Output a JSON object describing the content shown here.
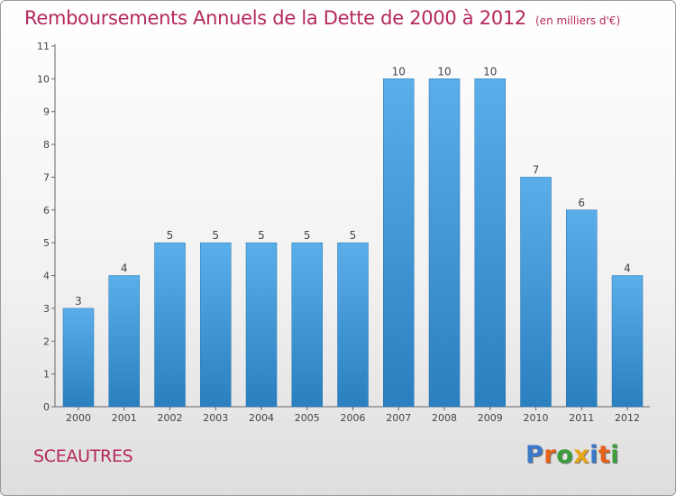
{
  "title": "Remboursements Annuels de la Dette de 2000 à 2012",
  "unit": "(en milliers d'€)",
  "commune": "SCEAUTRES",
  "logo": {
    "text": "Proxiti",
    "colors": [
      "#3a78c9",
      "#e8611a",
      "#3a9e3a",
      "#e8a71a",
      "#3a78c9",
      "#e8611a",
      "#3a9e3a"
    ]
  },
  "colors": {
    "bar_top": "#5aaeea",
    "bar_bottom": "#2a7fbf",
    "title": "#b5285e"
  },
  "chart_data": {
    "type": "bar",
    "categories": [
      "2000",
      "2001",
      "2002",
      "2003",
      "2004",
      "2005",
      "2006",
      "2007",
      "2008",
      "2009",
      "2010",
      "2011",
      "2012"
    ],
    "values": [
      3,
      4,
      5,
      5,
      5,
      5,
      5,
      10,
      10,
      10,
      7,
      6,
      4
    ],
    "yticks": [
      0,
      1,
      2,
      3,
      4,
      5,
      6,
      7,
      8,
      9,
      10,
      11
    ],
    "ylim": [
      0,
      11
    ],
    "grid": false,
    "data_labels": true
  }
}
